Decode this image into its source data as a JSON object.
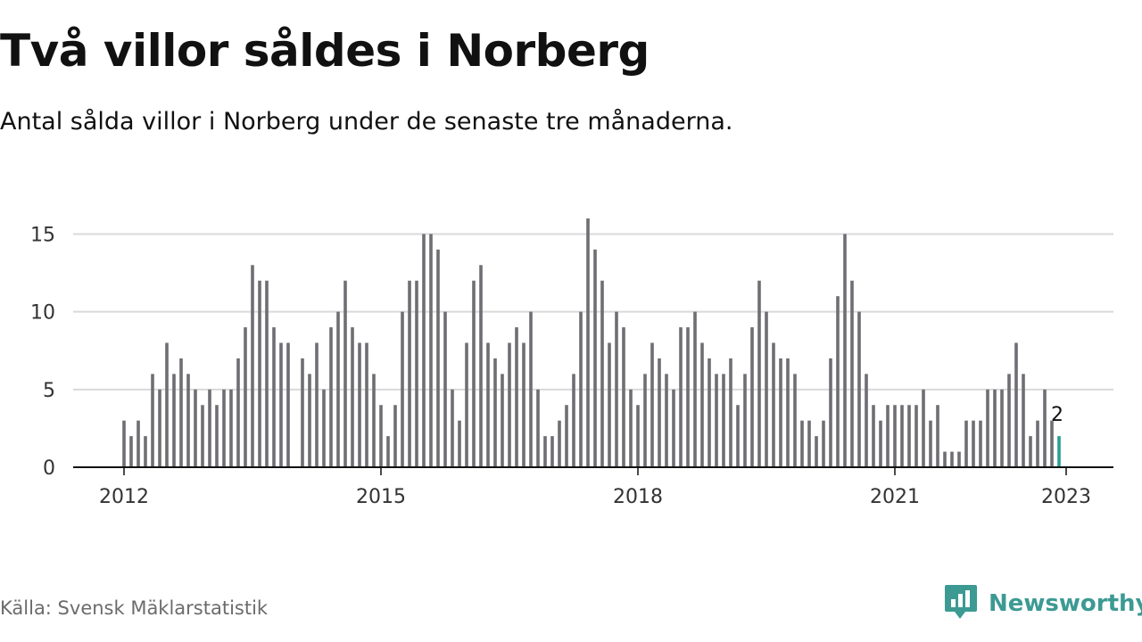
{
  "title": "Två villor såldes i Norberg",
  "subtitle": "Antal sålda villor i Norberg under de senaste tre månaderna.",
  "source": "Källa: Svensk Mäklarstatistik",
  "brand": {
    "name": "Newsworthy",
    "icon": "newsworthy-logo-icon",
    "color": "#3c9a93"
  },
  "colors": {
    "bar": "#6e6e73",
    "highlight": "#2a9d96",
    "grid": "#d9d9d9",
    "axis": "#111111"
  },
  "chart_data": {
    "type": "bar",
    "title": "",
    "xlabel": "",
    "ylabel": "",
    "ylim": [
      0,
      16
    ],
    "yticks": [
      0,
      5,
      10,
      15
    ],
    "x_tick_labels": [
      "2012",
      "2015",
      "2018",
      "2021",
      "2023"
    ],
    "grid": true,
    "legend": "none",
    "start": "2012-01",
    "highlight_label": "2",
    "values": [
      3,
      2,
      3,
      2,
      6,
      5,
      8,
      6,
      7,
      6,
      5,
      4,
      5,
      4,
      5,
      5,
      7,
      9,
      13,
      12,
      12,
      9,
      8,
      8,
      null,
      7,
      6,
      8,
      5,
      9,
      10,
      12,
      9,
      8,
      8,
      6,
      4,
      2,
      4,
      10,
      12,
      12,
      15,
      15,
      14,
      10,
      5,
      3,
      8,
      12,
      13,
      8,
      7,
      6,
      8,
      9,
      8,
      10,
      5,
      2,
      2,
      3,
      4,
      6,
      10,
      16,
      14,
      12,
      8,
      10,
      9,
      5,
      4,
      6,
      8,
      7,
      6,
      5,
      9,
      9,
      10,
      8,
      7,
      6,
      6,
      7,
      4,
      6,
      9,
      12,
      10,
      8,
      7,
      7,
      6,
      3,
      3,
      2,
      3,
      7,
      11,
      15,
      12,
      10,
      6,
      4,
      3,
      4,
      4,
      4,
      4,
      4,
      5,
      3,
      4,
      1,
      1,
      1,
      3,
      3,
      3,
      5,
      5,
      5,
      6,
      8,
      6,
      2,
      3,
      5,
      3,
      2
    ]
  }
}
